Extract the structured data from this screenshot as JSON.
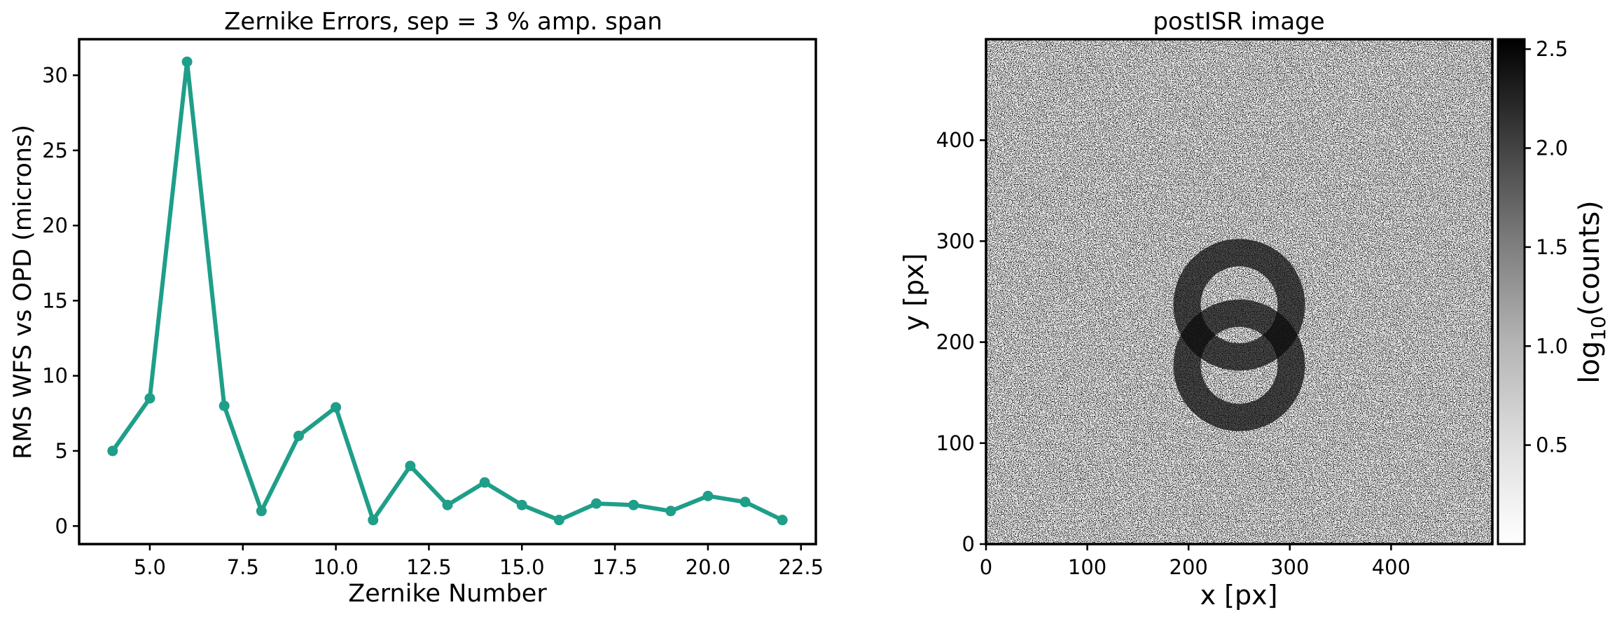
{
  "chart_data": [
    {
      "type": "line",
      "title": "Zernike Errors, sep = 3 % amp. span",
      "xlabel": "Zernike Number",
      "ylabel": "RMS WFS vs OPD (microns)",
      "xlim": [
        3.1,
        22.9
      ],
      "ylim": [
        -1.2,
        32.4
      ],
      "xticks": [
        5.0,
        7.5,
        10.0,
        12.5,
        15.0,
        17.5,
        20.0,
        22.5
      ],
      "xtick_labels": [
        "5.0",
        "7.5",
        "10.0",
        "12.5",
        "15.0",
        "17.5",
        "20.0",
        "22.5"
      ],
      "yticks": [
        0,
        5,
        10,
        15,
        20,
        25,
        30
      ],
      "ytick_labels": [
        "0",
        "5",
        "10",
        "15",
        "20",
        "25",
        "30"
      ],
      "grid": false,
      "color": "#1f9e89",
      "series": [
        {
          "x": [
            4,
            5,
            6,
            7,
            8,
            9,
            10,
            11,
            12,
            13,
            14,
            15,
            16,
            17,
            18,
            19,
            20,
            21,
            22
          ],
          "values": [
            5.0,
            8.5,
            30.9,
            8.0,
            1.0,
            6.0,
            7.9,
            0.4,
            4.0,
            1.4,
            2.9,
            1.4,
            0.4,
            1.5,
            1.4,
            1.0,
            2.0,
            1.6,
            0.4
          ]
        }
      ]
    },
    {
      "type": "heatmap",
      "title": "postISR image",
      "xlabel": "x [px]",
      "ylabel": "y [px]",
      "xlim": [
        0,
        500
      ],
      "ylim": [
        0,
        500
      ],
      "xticks": [
        0,
        100,
        200,
        300,
        400
      ],
      "xtick_labels": [
        "0",
        "100",
        "200",
        "300",
        "400"
      ],
      "yticks": [
        0,
        100,
        200,
        300,
        400
      ],
      "ytick_labels": [
        "0",
        "100",
        "200",
        "300",
        "400"
      ],
      "colormap": "Greys",
      "colorbar": {
        "label_main": "log",
        "label_sub": "10",
        "label_rest": "(counts)",
        "range": [
          0.0,
          2.55
        ],
        "ticks": [
          0.5,
          1.0,
          1.5,
          2.0,
          2.5
        ],
        "tick_labels": [
          "0.5",
          "1.0",
          "1.5",
          "2.0",
          "2.5"
        ]
      },
      "donuts": [
        {
          "cx": 250,
          "cy": 237,
          "r_outer": 65,
          "r_inner": 38
        },
        {
          "cx": 250,
          "cy": 177,
          "r_outer": 65,
          "r_inner": 38
        }
      ]
    }
  ]
}
